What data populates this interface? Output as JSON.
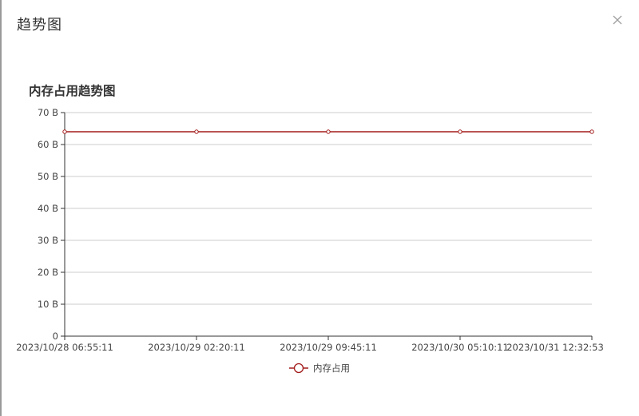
{
  "dialog": {
    "title": "趋势图"
  },
  "icons": {
    "close": "close-icon"
  },
  "colors": {
    "series": "#a31c1c",
    "grid": "#cccccc",
    "axis": "#333333"
  },
  "chart_data": {
    "type": "line",
    "title": "内存占用趋势图",
    "xlabel": "",
    "ylabel": "",
    "x": [
      "2023/10/28 06:55:11",
      "2023/10/29 02:20:11",
      "2023/10/29 09:45:11",
      "2023/10/30 05:10:11",
      "2023/10/31 12:32:53"
    ],
    "ylim": [
      0,
      70
    ],
    "yticks": [
      0,
      10,
      20,
      30,
      40,
      50,
      60,
      70
    ],
    "ytick_labels": [
      "0",
      "10 B",
      "20 B",
      "30 B",
      "40 B",
      "50 B",
      "60 B",
      "70 B"
    ],
    "grid": true,
    "legend_position": "bottom-center",
    "series": [
      {
        "name": "内存占用",
        "values": [
          64,
          64,
          64,
          64,
          64
        ]
      }
    ]
  }
}
